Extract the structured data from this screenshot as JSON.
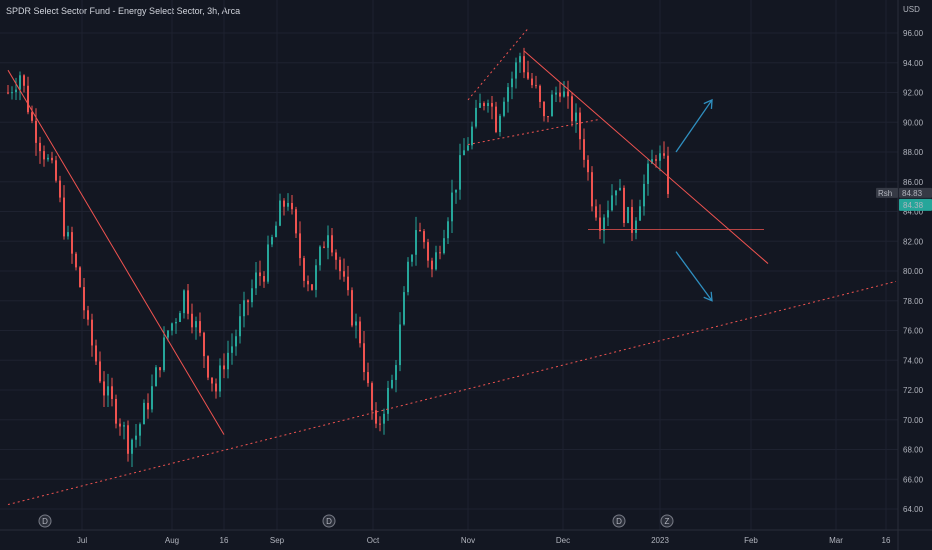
{
  "header": {
    "title": "SPDR Select Sector Fund - Energy Select Sector, 3h, Arca"
  },
  "chart_data": {
    "type": "candlestick",
    "title": "SPDR Select Sector Fund - Energy Select Sector, 3h, Arca",
    "y_unit": "USD",
    "ylim": [
      63,
      98
    ],
    "y_ticks": [
      "64.00",
      "66.00",
      "68.00",
      "70.00",
      "72.00",
      "74.00",
      "76.00",
      "78.00",
      "80.00",
      "82.00",
      "84.00",
      "86.00",
      "88.00",
      "90.00",
      "92.00",
      "94.00",
      "96.00"
    ],
    "x_ticks": [
      "Jul",
      "Aug",
      "16",
      "Sep",
      "Oct",
      "Nov",
      "Dec",
      "2023",
      "Feb",
      "Mar",
      "16"
    ],
    "last_price": "84.38",
    "price_tag_label": "Rsh",
    "price_tag_label2": "84.83",
    "event_markers": [
      "D",
      "D",
      "D",
      "Z"
    ],
    "grid": true,
    "up_color": "#26a69a",
    "down_color": "#ef5350",
    "line_color": "#ef5350",
    "arrow_color": "#2f8fc0",
    "close_path": [
      [
        0,
        92
      ],
      [
        3,
        93.3
      ],
      [
        6,
        90
      ],
      [
        9,
        88
      ],
      [
        12,
        86
      ],
      [
        14,
        83
      ],
      [
        16,
        81
      ],
      [
        18,
        79
      ],
      [
        20,
        76
      ],
      [
        22,
        74
      ],
      [
        24,
        72
      ],
      [
        26,
        71
      ],
      [
        28,
        70
      ],
      [
        30,
        68.5
      ],
      [
        32,
        69
      ],
      [
        34,
        70.5
      ],
      [
        36,
        72
      ],
      [
        38,
        74
      ],
      [
        40,
        76
      ],
      [
        42,
        77
      ],
      [
        44,
        78.5
      ],
      [
        46,
        77
      ],
      [
        48,
        75.5
      ],
      [
        50,
        73.5
      ],
      [
        52,
        72
      ],
      [
        54,
        74
      ],
      [
        56,
        75
      ],
      [
        58,
        76.5
      ],
      [
        60,
        78
      ],
      [
        62,
        79.5
      ],
      [
        64,
        80
      ],
      [
        66,
        82
      ],
      [
        68,
        84
      ],
      [
        70,
        85
      ],
      [
        72,
        82
      ],
      [
        74,
        80
      ],
      [
        76,
        79
      ],
      [
        78,
        81
      ],
      [
        80,
        83
      ],
      [
        82,
        81
      ],
      [
        84,
        79
      ],
      [
        86,
        77
      ],
      [
        88,
        75.5
      ],
      [
        90,
        72
      ],
      [
        92,
        69
      ],
      [
        94,
        71
      ],
      [
        96,
        72.5
      ],
      [
        98,
        76
      ],
      [
        100,
        80
      ],
      [
        102,
        83
      ],
      [
        104,
        82
      ],
      [
        106,
        80
      ],
      [
        108,
        82
      ],
      [
        110,
        84
      ],
      [
        112,
        86
      ],
      [
        114,
        88
      ],
      [
        116,
        89.5
      ],
      [
        118,
        91
      ],
      [
        120,
        92
      ],
      [
        122,
        90
      ],
      [
        124,
        92
      ],
      [
        126,
        93
      ],
      [
        128,
        94.5
      ],
      [
        130,
        93
      ],
      [
        132,
        92
      ],
      [
        134,
        90
      ],
      [
        136,
        91.5
      ],
      [
        138,
        92.5
      ],
      [
        140,
        91
      ],
      [
        142,
        90
      ],
      [
        144,
        88
      ],
      [
        146,
        85
      ],
      [
        148,
        83.5
      ],
      [
        150,
        84.5
      ],
      [
        152,
        86
      ],
      [
        154,
        84
      ],
      [
        156,
        83
      ],
      [
        158,
        85
      ],
      [
        160,
        86.5
      ],
      [
        162,
        88
      ],
      [
        164,
        87
      ],
      [
        166,
        84.38
      ]
    ],
    "trendlines": [
      {
        "style": "solid",
        "points": [
          [
            0,
            93.5
          ],
          [
            54,
            69
          ]
        ]
      },
      {
        "style": "solid",
        "points": [
          [
            129,
            94.8
          ],
          [
            190,
            80.5
          ]
        ]
      },
      {
        "style": "dotted",
        "points": [
          [
            0,
            64.3
          ],
          [
            222,
            79.3
          ]
        ]
      },
      {
        "style": "dotted",
        "points": [
          [
            115,
            88.5
          ],
          [
            148,
            90.2
          ]
        ]
      },
      {
        "style": "dotted",
        "points": [
          [
            115,
            91.5
          ],
          [
            130,
            96.3
          ]
        ]
      },
      {
        "style": "thin",
        "points": [
          [
            145,
            82.8
          ],
          [
            189,
            82.8
          ]
        ]
      }
    ],
    "arrows": [
      {
        "direction": "up",
        "from": [
          167,
          88
        ],
        "to": [
          176,
          91.5
        ]
      },
      {
        "direction": "down",
        "from": [
          167,
          81.3
        ],
        "to": [
          176,
          78
        ]
      }
    ]
  }
}
